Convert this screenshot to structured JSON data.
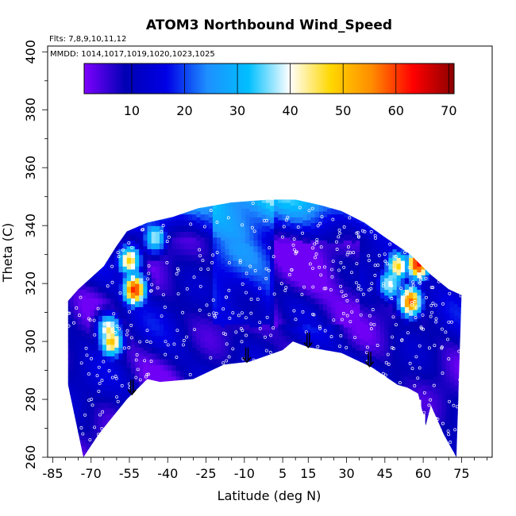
{
  "chart_data": {
    "type": "heatmap",
    "title": "ATOM3 Northbound Wind_Speed",
    "subtitle_flights": "Flts: 7,8,9,10,11,12",
    "subtitle_dates": "MMDD: 1014,1017,1019,1020,1023,1025",
    "xlabel": "Latitude (deg N)",
    "ylabel": "Theta (C)",
    "xlim": [
      -87,
      87
    ],
    "ylim": [
      260,
      402
    ],
    "x_ticks": [
      -85,
      -70,
      -55,
      -40,
      -25,
      -10,
      5,
      15,
      30,
      45,
      60,
      75
    ],
    "y_ticks": [
      260,
      280,
      300,
      320,
      340,
      360,
      380,
      400
    ],
    "colorbar": {
      "range": [
        1,
        71
      ],
      "ticks": [
        10,
        20,
        30,
        40,
        50,
        60,
        70
      ],
      "colors": [
        "#7f00ff",
        "#0000b4",
        "#0000e6",
        "#1e90ff",
        "#00bfff",
        "#ffffff",
        "#ffd700",
        "#ff8c00",
        "#ff0000",
        "#8b0000"
      ]
    },
    "surface_boundary": [
      [
        -73,
        260
      ],
      [
        -67,
        268
      ],
      [
        -56,
        280
      ],
      [
        -48,
        287
      ],
      [
        -43,
        286
      ],
      [
        -30,
        287
      ],
      [
        -18,
        292
      ],
      [
        -8,
        293
      ],
      [
        5,
        297
      ],
      [
        9,
        300
      ],
      [
        15,
        298
      ],
      [
        28,
        296
      ],
      [
        40,
        291
      ],
      [
        50,
        285
      ],
      [
        54,
        284
      ],
      [
        58,
        282
      ],
      [
        61,
        271
      ],
      [
        63,
        278
      ],
      [
        68,
        268
      ],
      [
        73,
        260
      ]
    ],
    "top_boundary": [
      [
        -79,
        314
      ],
      [
        -75,
        318
      ],
      [
        -70,
        322
      ],
      [
        -65,
        326
      ],
      [
        -60,
        333
      ],
      [
        -56,
        338
      ],
      [
        -48,
        341
      ],
      [
        -38,
        343
      ],
      [
        -28,
        346
      ],
      [
        -15,
        348
      ],
      [
        0,
        349
      ],
      [
        10,
        349
      ],
      [
        20,
        347
      ],
      [
        28,
        345
      ],
      [
        37,
        341
      ],
      [
        45,
        336
      ],
      [
        55,
        330
      ],
      [
        63,
        323
      ],
      [
        70,
        318
      ],
      [
        75,
        316
      ]
    ],
    "arrows_x": [
      -54,
      -9,
      15,
      39
    ],
    "high_wind_regions": [
      {
        "lat": -55,
        "theta": 328,
        "value": 48
      },
      {
        "lat": -53,
        "theta": 318,
        "value": 62
      },
      {
        "lat": -63,
        "theta": 304,
        "value": 45
      },
      {
        "lat": -62,
        "theta": 300,
        "value": 50
      },
      {
        "lat": -45,
        "theta": 336,
        "value": 38
      },
      {
        "lat": 58,
        "theta": 327,
        "value": 64
      },
      {
        "lat": 50,
        "theta": 326,
        "value": 48
      },
      {
        "lat": 55,
        "theta": 314,
        "value": 58
      },
      {
        "lat": 47,
        "theta": 320,
        "value": 40
      }
    ]
  }
}
